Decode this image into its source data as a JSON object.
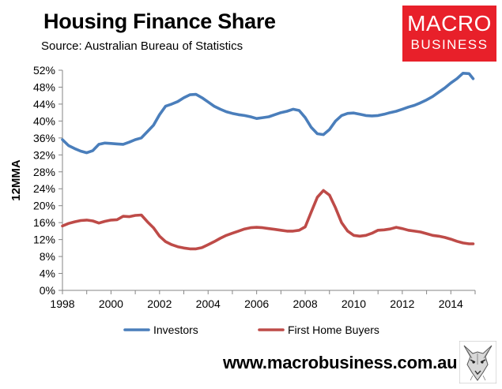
{
  "title": "Housing Finance Share",
  "source": "Source: Australian Bureau of Statistics",
  "logo": {
    "line1": "MACRO",
    "line2": "BUSINESS",
    "color": "#e8202a"
  },
  "footer": {
    "url": "www.macrobusiness.com.au",
    "icon": "wolf-logo-icon"
  },
  "chart_data": {
    "type": "line",
    "title": "Housing Finance Share",
    "xlabel": "",
    "ylabel": "12MMA",
    "xlim": [
      1998,
      2015
    ],
    "ylim": [
      0,
      52
    ],
    "x_ticks": [
      1998,
      2000,
      2002,
      2004,
      2006,
      2008,
      2010,
      2012,
      2014
    ],
    "y_ticks": [
      0,
      4,
      8,
      12,
      16,
      20,
      24,
      28,
      32,
      36,
      40,
      44,
      48,
      52
    ],
    "y_tick_format": "percent",
    "grid": false,
    "legend": "bottom",
    "series": [
      {
        "name": "Investors",
        "color": "#4a7ebb",
        "x": [
          1998,
          1998.25,
          1998.5,
          1998.75,
          1999,
          1999.25,
          1999.5,
          1999.75,
          2000,
          2000.25,
          2000.5,
          2000.75,
          2001,
          2001.25,
          2001.5,
          2001.75,
          2002,
          2002.25,
          2002.5,
          2002.75,
          2003,
          2003.25,
          2003.5,
          2003.75,
          2004,
          2004.25,
          2004.5,
          2004.75,
          2005,
          2005.25,
          2005.5,
          2005.75,
          2006,
          2006.25,
          2006.5,
          2006.75,
          2007,
          2007.25,
          2007.5,
          2007.75,
          2008,
          2008.25,
          2008.5,
          2008.75,
          2009,
          2009.25,
          2009.5,
          2009.75,
          2010,
          2010.25,
          2010.5,
          2010.75,
          2011,
          2011.25,
          2011.5,
          2011.75,
          2012,
          2012.25,
          2012.5,
          2012.75,
          2013,
          2013.25,
          2013.5,
          2013.75,
          2014,
          2014.25,
          2014.5,
          2014.75,
          2014.92
        ],
        "values": [
          35.6,
          34.2,
          33.5,
          32.9,
          32.5,
          33.0,
          34.5,
          34.8,
          34.7,
          34.6,
          34.5,
          35.0,
          35.6,
          36.0,
          37.5,
          39.0,
          41.5,
          43.5,
          44.0,
          44.6,
          45.5,
          46.2,
          46.3,
          45.5,
          44.5,
          43.5,
          42.8,
          42.2,
          41.8,
          41.5,
          41.3,
          41.0,
          40.6,
          40.8,
          41.0,
          41.5,
          42.0,
          42.3,
          42.8,
          42.5,
          40.8,
          38.5,
          37.0,
          36.8,
          38.0,
          40.0,
          41.3,
          41.8,
          41.9,
          41.6,
          41.3,
          41.2,
          41.3,
          41.6,
          42.0,
          42.3,
          42.8,
          43.3,
          43.7,
          44.3,
          45.0,
          45.8,
          46.8,
          47.8,
          49.0,
          50.0,
          51.3,
          51.2,
          50.0
        ]
      },
      {
        "name": "First Home Buyers",
        "color": "#be4b48",
        "x": [
          1998,
          1998.25,
          1998.5,
          1998.75,
          1999,
          1999.25,
          1999.5,
          1999.75,
          2000,
          2000.25,
          2000.5,
          2000.75,
          2001,
          2001.25,
          2001.5,
          2001.75,
          2002,
          2002.25,
          2002.5,
          2002.75,
          2003,
          2003.25,
          2003.5,
          2003.75,
          2004,
          2004.25,
          2004.5,
          2004.75,
          2005,
          2005.25,
          2005.5,
          2005.75,
          2006,
          2006.25,
          2006.5,
          2006.75,
          2007,
          2007.25,
          2007.5,
          2007.75,
          2008,
          2008.25,
          2008.5,
          2008.75,
          2009,
          2009.25,
          2009.5,
          2009.75,
          2010,
          2010.25,
          2010.5,
          2010.75,
          2011,
          2011.25,
          2011.5,
          2011.75,
          2012,
          2012.25,
          2012.5,
          2012.75,
          2013,
          2013.25,
          2013.5,
          2013.75,
          2014,
          2014.25,
          2014.5,
          2014.75,
          2014.92
        ],
        "values": [
          15.2,
          15.8,
          16.2,
          16.5,
          16.6,
          16.4,
          15.9,
          16.3,
          16.6,
          16.7,
          17.5,
          17.4,
          17.7,
          17.8,
          16.2,
          14.8,
          12.8,
          11.5,
          10.8,
          10.3,
          10.0,
          9.8,
          9.8,
          10.1,
          10.8,
          11.5,
          12.3,
          13.0,
          13.5,
          14.0,
          14.5,
          14.8,
          14.9,
          14.8,
          14.6,
          14.4,
          14.2,
          14.0,
          14.0,
          14.2,
          15.0,
          18.5,
          22.0,
          23.6,
          22.5,
          19.5,
          16.0,
          14.0,
          13.0,
          12.8,
          13.0,
          13.5,
          14.2,
          14.3,
          14.5,
          14.9,
          14.6,
          14.2,
          14.0,
          13.8,
          13.4,
          13.0,
          12.8,
          12.5,
          12.1,
          11.6,
          11.2,
          11.0,
          11.0
        ]
      }
    ]
  }
}
